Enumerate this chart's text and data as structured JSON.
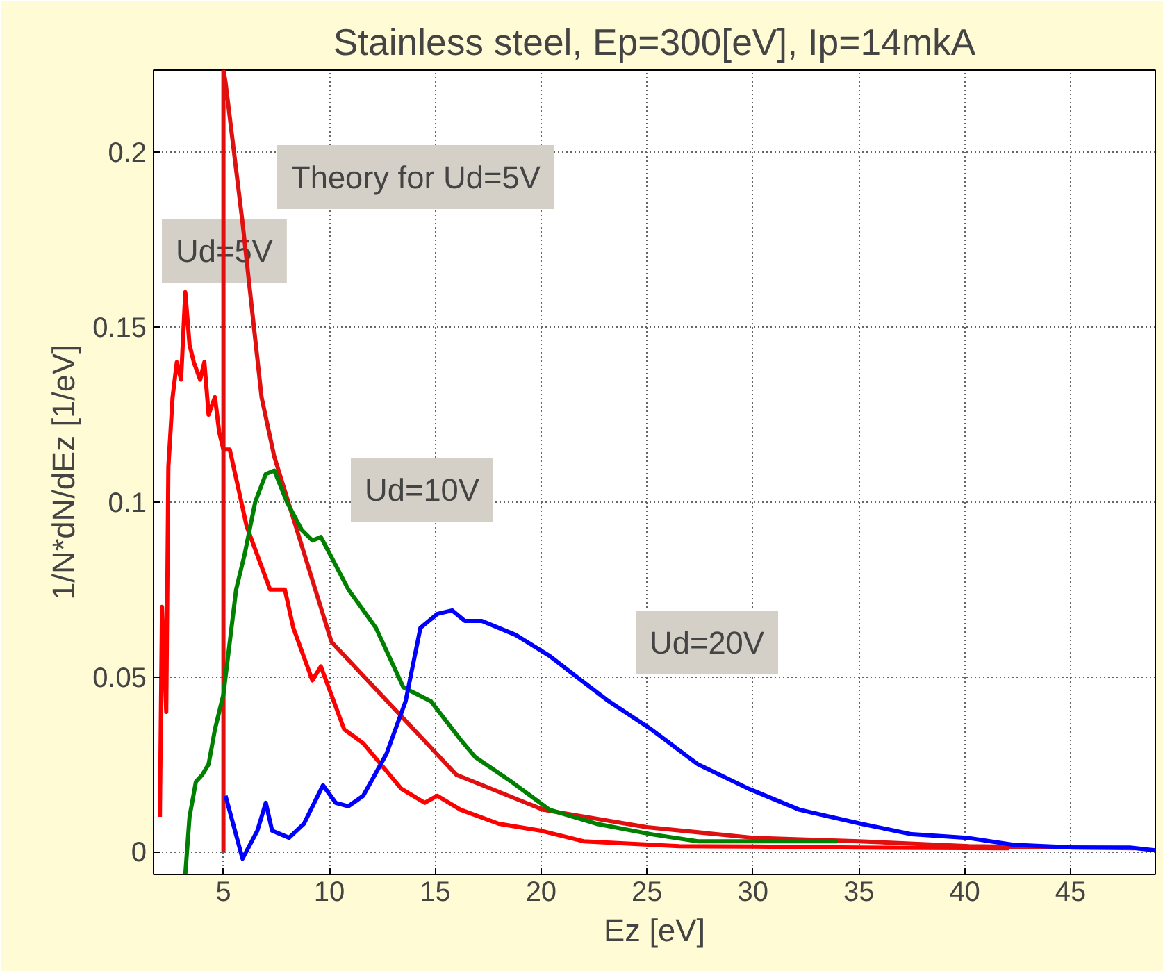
{
  "chart_data": {
    "type": "line",
    "title": "Stainless steel, Ep=300[eV], Ip=14mkA",
    "xlabel": "Ez [eV]",
    "ylabel": "1/N*dN/dEz [1/eV]",
    "xlim": [
      1.7,
      49
    ],
    "ylim": [
      -0.0065,
      0.2235
    ],
    "xticks": [
      5,
      10,
      15,
      20,
      25,
      30,
      35,
      40,
      45
    ],
    "yticks": [
      0,
      0.05,
      0.1,
      0.15,
      0.2
    ],
    "grid": true,
    "marker": "none",
    "line_style": "solid",
    "annotations": [
      "Ud=5V",
      "Theory for Ud=5V",
      "Ud=10V",
      "Ud=20V"
    ],
    "series": [
      {
        "color": "#ff0000",
        "x": [
          2.0,
          2.1,
          2.3,
          2.4,
          2.6,
          2.8,
          3.0,
          3.2,
          3.4,
          3.6,
          3.9,
          4.1,
          4.3,
          4.6,
          4.8,
          5.0,
          5.3,
          6.1,
          7.2,
          7.9,
          8.3,
          9.2,
          9.6,
          10.7,
          11.6,
          13.4,
          14.5,
          15.1,
          16.2,
          18.0,
          20.0,
          22.0,
          26.5,
          30,
          35,
          42.1
        ],
        "values": [
          0.01,
          0.07,
          0.04,
          0.11,
          0.13,
          0.14,
          0.135,
          0.16,
          0.145,
          0.14,
          0.135,
          0.14,
          0.125,
          0.13,
          0.12,
          0.115,
          0.115,
          0.093,
          0.075,
          0.075,
          0.064,
          0.049,
          0.053,
          0.035,
          0.031,
          0.018,
          0.014,
          0.016,
          0.012,
          0.008,
          0.006,
          0.003,
          0.0016,
          0.0015,
          0.0012,
          0.001
        ]
      },
      {
        "color": "#e01010",
        "x": [
          5.0,
          5.0,
          5.1,
          5.9,
          6.8,
          7.4,
          10.1,
          16,
          20.1,
          25,
          30,
          35,
          40.2,
          48
        ],
        "values": [
          0,
          0.2235,
          0.22,
          0.18,
          0.13,
          0.113,
          0.06,
          0.022,
          0.012,
          0.007,
          0.004,
          0.003,
          0.0016,
          0.001
        ]
      },
      {
        "color": "#008000",
        "x": [
          3.2,
          3.4,
          3.7,
          4.0,
          4.3,
          4.6,
          5.0,
          5.3,
          5.6,
          6.0,
          6.5,
          7.0,
          7.4,
          8.0,
          8.7,
          9.2,
          9.6,
          10.9,
          12.2,
          13.5,
          14.8,
          16.2,
          16.9,
          18.6,
          20.4,
          22.6,
          25.2,
          27.4,
          32,
          34
        ],
        "values": [
          -0.0065,
          0.01,
          0.02,
          0.022,
          0.025,
          0.035,
          0.045,
          0.06,
          0.075,
          0.085,
          0.1,
          0.108,
          0.109,
          0.1,
          0.092,
          0.089,
          0.09,
          0.075,
          0.064,
          0.047,
          0.043,
          0.032,
          0.027,
          0.02,
          0.012,
          0.008,
          0.005,
          0.003,
          0.003,
          0.003
        ]
      },
      {
        "color": "#0000ff",
        "x": [
          5.1,
          5.9,
          6.6,
          7.0,
          7.3,
          8.1,
          8.8,
          9.7,
          10.3,
          10.9,
          11.6,
          12.7,
          13.6,
          14.3,
          15.1,
          15.8,
          16.4,
          17.2,
          18.8,
          20.4,
          21.9,
          23.2,
          25.2,
          27.4,
          29.8,
          32.2,
          35.1,
          37.5,
          40.1,
          42.3,
          45.1,
          47.8,
          49
        ],
        "values": [
          0.016,
          -0.002,
          0.006,
          0.014,
          0.006,
          0.004,
          0.008,
          0.019,
          0.014,
          0.013,
          0.016,
          0.028,
          0.043,
          0.064,
          0.068,
          0.069,
          0.066,
          0.066,
          0.062,
          0.056,
          0.049,
          0.043,
          0.035,
          0.025,
          0.018,
          0.012,
          0.008,
          0.005,
          0.004,
          0.002,
          0.0012,
          0.0012,
          0.0004
        ]
      }
    ]
  }
}
